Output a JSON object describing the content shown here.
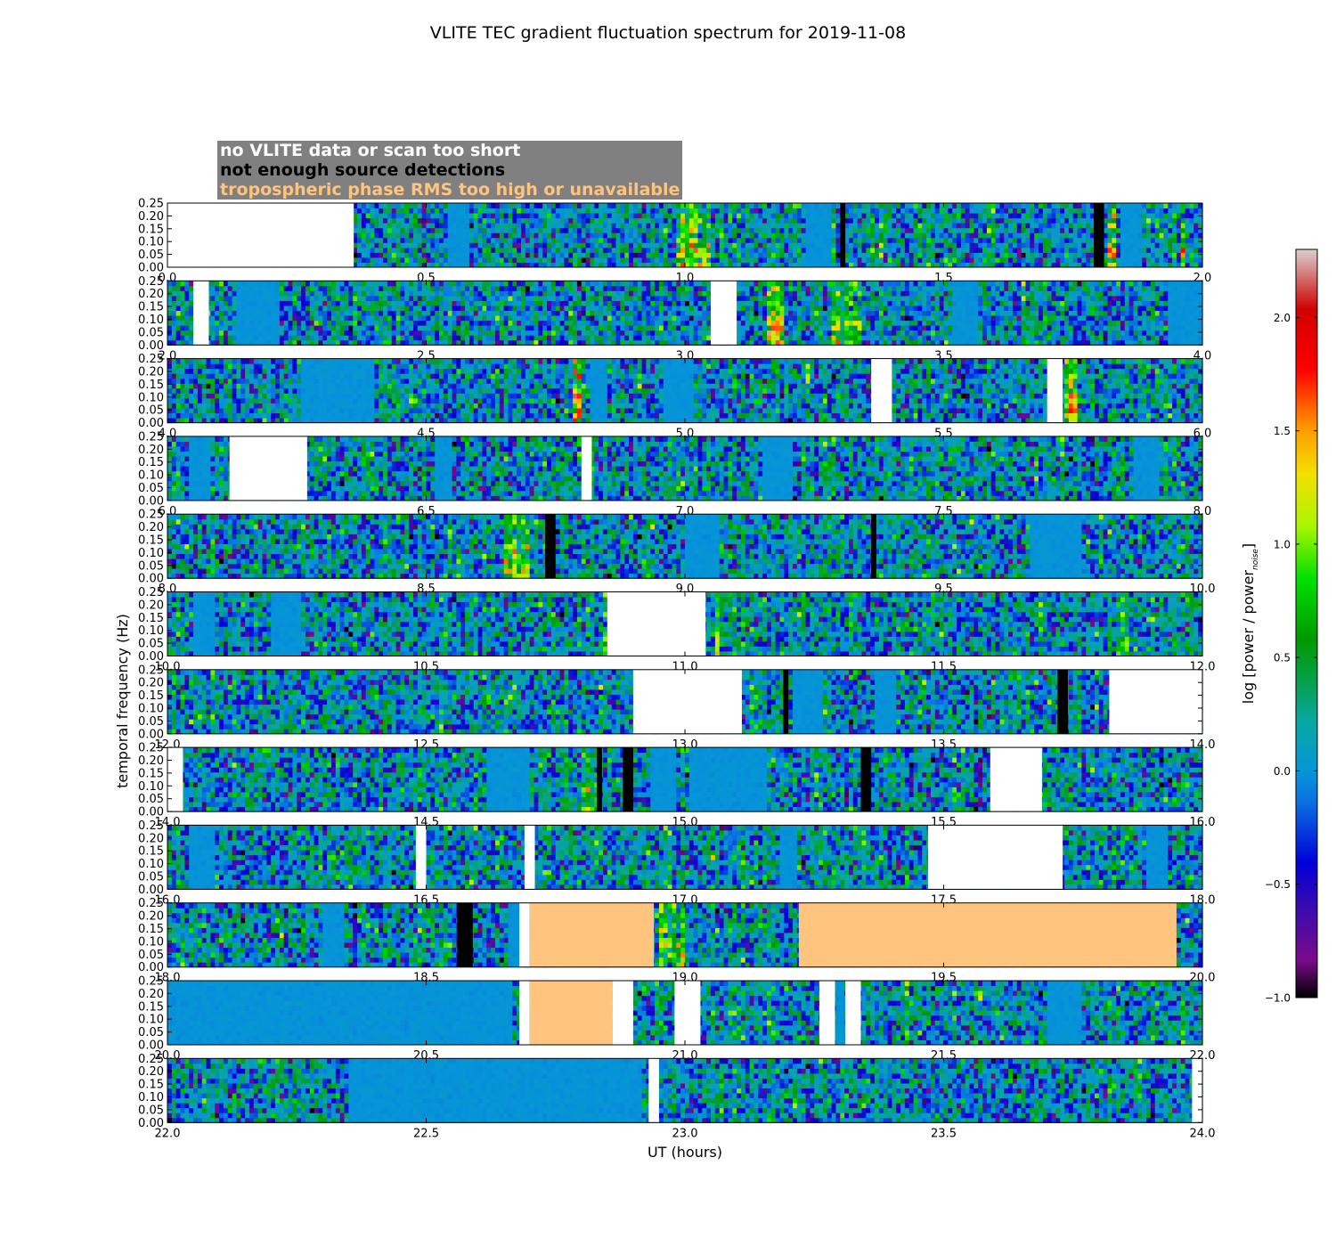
{
  "chart_data": {
    "type": "heatmap",
    "title": "VLITE TEC gradient fluctuation spectrum for 2019-11-08",
    "xlabel": "UT (hours)",
    "ylabel": "temporal frequency (Hz)",
    "ylim": [
      0,
      0.25
    ],
    "yticks": [
      "0.00",
      "0.05",
      "0.10",
      "0.15",
      "0.20",
      "0.25"
    ],
    "colorbar": {
      "label": "log [power / power",
      "label_sub": "noise",
      "label_end": "]",
      "range": [
        -1.0,
        2.3
      ],
      "ticks": [
        "2.0",
        "1.5",
        "1.0",
        "0.5",
        "0.0",
        "−0.5",
        "−1.0"
      ],
      "tick_values": [
        2.0,
        1.5,
        1.0,
        0.5,
        0.0,
        -0.5,
        -1.0
      ]
    },
    "legend": [
      {
        "text": "no VLITE data or scan too short",
        "color": "#ffffff"
      },
      {
        "text": "not enough source detections",
        "color": "#000000"
      },
      {
        "text": "tropospheric phase RMS too high or unavailable",
        "color": "#ffc47d"
      }
    ],
    "panels": [
      {
        "range": [
          0.0,
          2.0
        ],
        "ticks": [
          "0.0",
          "0.5",
          "1.0",
          "1.5",
          "2.0"
        ],
        "masks": [
          {
            "t": "white",
            "s": 0.0,
            "e": 0.36
          },
          {
            "t": "black",
            "s": 1.3,
            "e": 1.31
          },
          {
            "t": "black",
            "s": 1.79,
            "e": 1.81
          }
        ],
        "quiet": [
          {
            "s": 0.54,
            "e": 0.58
          },
          {
            "s": 1.23,
            "e": 1.28
          },
          {
            "s": 1.84,
            "e": 1.88
          }
        ],
        "hot": [
          {
            "s": 0.98,
            "e": 1.05,
            "a": 0.9
          },
          {
            "s": 1.82,
            "e": 1.83,
            "a": 1.2
          },
          {
            "s": 1.96,
            "e": 1.97,
            "a": 1.0
          }
        ]
      },
      {
        "range": [
          2.0,
          4.0
        ],
        "ticks": [
          "2.0",
          "2.5",
          "3.0",
          "3.5",
          "4.0"
        ],
        "masks": [
          {
            "t": "white",
            "s": 2.05,
            "e": 2.08
          },
          {
            "t": "white",
            "s": 3.05,
            "e": 3.1
          }
        ],
        "quiet": [
          {
            "s": 2.13,
            "e": 2.22
          },
          {
            "s": 3.52,
            "e": 3.57
          },
          {
            "s": 3.93,
            "e": 4.0
          }
        ],
        "hot": [
          {
            "s": 3.16,
            "e": 3.19,
            "a": 1.3
          },
          {
            "s": 3.28,
            "e": 3.34,
            "a": 0.8
          }
        ]
      },
      {
        "range": [
          4.0,
          6.0
        ],
        "ticks": [
          "4.0",
          "4.5",
          "5.0",
          "5.5",
          "6.0"
        ],
        "masks": [
          {
            "t": "white",
            "s": 5.36,
            "e": 5.4
          },
          {
            "t": "white",
            "s": 5.7,
            "e": 5.73
          }
        ],
        "quiet": [
          {
            "s": 4.26,
            "e": 4.4
          },
          {
            "s": 4.82,
            "e": 4.85
          },
          {
            "s": 4.96,
            "e": 5.02
          }
        ],
        "hot": [
          {
            "s": 4.78,
            "e": 4.8,
            "a": 1.2
          },
          {
            "s": 5.73,
            "e": 5.76,
            "a": 1.3
          }
        ]
      },
      {
        "range": [
          6.0,
          8.0
        ],
        "ticks": [
          "6.0",
          "6.5",
          "7.0",
          "7.5",
          "8.0"
        ],
        "masks": [
          {
            "t": "white",
            "s": 6.12,
            "e": 6.27
          },
          {
            "t": "white",
            "s": 6.8,
            "e": 6.82
          }
        ],
        "quiet": [
          {
            "s": 6.04,
            "e": 6.08
          },
          {
            "s": 6.52,
            "e": 6.55
          },
          {
            "s": 7.15,
            "e": 7.21
          },
          {
            "s": 7.87,
            "e": 7.92
          }
        ],
        "hot": []
      },
      {
        "range": [
          8.0,
          10.0
        ],
        "ticks": [
          "8.0",
          "8.5",
          "9.0",
          "9.5",
          "10.0"
        ],
        "masks": [
          {
            "t": "black",
            "s": 8.73,
            "e": 8.75
          },
          {
            "t": "black",
            "s": 9.36,
            "e": 9.37
          }
        ],
        "quiet": [
          {
            "s": 9.0,
            "e": 9.07
          },
          {
            "s": 9.67,
            "e": 9.77
          }
        ],
        "hot": [
          {
            "s": 8.65,
            "e": 8.7,
            "a": 1.0
          }
        ]
      },
      {
        "range": [
          10.0,
          12.0
        ],
        "ticks": [
          "10.0",
          "10.5",
          "11.0",
          "11.5",
          "12.0"
        ],
        "masks": [
          {
            "t": "white",
            "s": 10.85,
            "e": 11.04
          }
        ],
        "quiet": [
          {
            "s": 10.05,
            "e": 10.09
          },
          {
            "s": 10.2,
            "e": 10.26
          }
        ],
        "hot": [
          {
            "s": 10.84,
            "e": 10.86,
            "a": 1.0
          },
          {
            "s": 11.06,
            "e": 11.07,
            "a": 1.1
          }
        ]
      },
      {
        "range": [
          12.0,
          14.0
        ],
        "ticks": [
          "12.0",
          "12.5",
          "13.0",
          "13.5",
          "14.0"
        ],
        "masks": [
          {
            "t": "white",
            "s": 12.9,
            "e": 13.11
          },
          {
            "t": "black",
            "s": 13.19,
            "e": 13.2
          },
          {
            "t": "black",
            "s": 13.72,
            "e": 13.74
          },
          {
            "t": "white",
            "s": 13.82,
            "e": 14.0
          }
        ],
        "quiet": [
          {
            "s": 13.21,
            "e": 13.27
          },
          {
            "s": 13.37,
            "e": 13.41
          }
        ],
        "hot": []
      },
      {
        "range": [
          14.0,
          16.0
        ],
        "ticks": [
          "14.0",
          "14.5",
          "15.0",
          "15.5",
          "16.0"
        ],
        "masks": [
          {
            "t": "white",
            "s": 14.0,
            "e": 14.03
          },
          {
            "t": "black",
            "s": 14.83,
            "e": 14.84
          },
          {
            "t": "black",
            "s": 14.88,
            "e": 14.9
          },
          {
            "t": "black",
            "s": 15.34,
            "e": 15.36
          },
          {
            "t": "white",
            "s": 15.59,
            "e": 15.69
          }
        ],
        "quiet": [
          {
            "s": 14.62,
            "e": 14.7
          },
          {
            "s": 14.93,
            "e": 14.98
          },
          {
            "s": 15.01,
            "e": 15.16
          }
        ],
        "hot": [
          {
            "s": 14.8,
            "e": 14.83,
            "a": 0.7
          }
        ]
      },
      {
        "range": [
          16.0,
          18.0
        ],
        "ticks": [
          "16.0",
          "16.5",
          "17.0",
          "17.5",
          "18.0"
        ],
        "masks": [
          {
            "t": "white",
            "s": 16.48,
            "e": 16.5
          },
          {
            "t": "white",
            "s": 16.69,
            "e": 16.71
          },
          {
            "t": "white",
            "s": 17.47,
            "e": 17.73
          }
        ],
        "quiet": [
          {
            "s": 16.04,
            "e": 16.09
          },
          {
            "s": 17.18,
            "e": 17.22
          },
          {
            "s": 17.89,
            "e": 17.93
          }
        ],
        "hot": []
      },
      {
        "range": [
          18.0,
          20.0
        ],
        "ticks": [
          "18.0",
          "18.5",
          "19.0",
          "19.5",
          "20.0"
        ],
        "masks": [
          {
            "t": "black",
            "s": 18.56,
            "e": 18.59
          },
          {
            "t": "white",
            "s": 18.68,
            "e": 18.7
          },
          {
            "t": "orange",
            "s": 18.7,
            "e": 18.94
          },
          {
            "t": "orange",
            "s": 19.22,
            "e": 19.95
          }
        ],
        "quiet": [
          {
            "s": 18.66,
            "e": 18.68
          },
          {
            "s": 18.3,
            "e": 18.34
          }
        ],
        "hot": [
          {
            "s": 18.95,
            "e": 19.0,
            "a": 0.8
          }
        ]
      },
      {
        "range": [
          20.0,
          22.0
        ],
        "ticks": [
          "20.0",
          "20.5",
          "21.0",
          "21.5",
          "22.0"
        ],
        "masks": [
          {
            "t": "white",
            "s": 20.68,
            "e": 20.7
          },
          {
            "t": "orange",
            "s": 20.7,
            "e": 20.86
          },
          {
            "t": "white",
            "s": 20.86,
            "e": 20.9
          },
          {
            "t": "white",
            "s": 20.98,
            "e": 21.03
          },
          {
            "t": "white",
            "s": 21.26,
            "e": 21.29
          },
          {
            "t": "white",
            "s": 21.31,
            "e": 21.34
          }
        ],
        "quiet": [
          {
            "s": 20.0,
            "e": 20.67
          },
          {
            "s": 21.29,
            "e": 21.31
          },
          {
            "s": 21.7,
            "e": 21.77
          }
        ],
        "hot": []
      },
      {
        "range": [
          22.0,
          24.0
        ],
        "ticks": [
          "22.0",
          "22.5",
          "23.0",
          "23.5",
          "24.0"
        ],
        "masks": [
          {
            "t": "white",
            "s": 22.93,
            "e": 22.95
          },
          {
            "t": "white",
            "s": 23.98,
            "e": 24.0
          }
        ],
        "quiet": [
          {
            "s": 22.35,
            "e": 22.92
          }
        ],
        "hot": []
      }
    ]
  }
}
